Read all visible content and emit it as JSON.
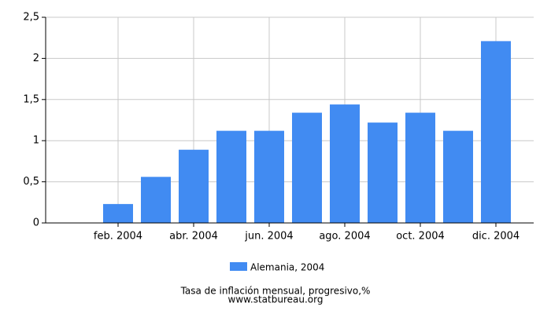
{
  "chart_data": {
    "type": "bar",
    "categories": [
      null,
      "feb. 2004",
      null,
      "abr. 2004",
      null,
      "jun. 2004",
      null,
      "ago. 2004",
      null,
      "oct. 2004",
      null,
      "dic. 2004"
    ],
    "series": [
      {
        "name": "Alemania, 2004",
        "color": "#418bf2",
        "values": [
          0,
          0.23,
          0.56,
          0.89,
          1.12,
          1.12,
          1.34,
          1.44,
          1.22,
          1.34,
          1.12,
          2.21
        ]
      }
    ],
    "ylim": [
      0,
      2.5
    ],
    "yticks": [
      0,
      {
        "value": 0.5,
        "label": "0,5"
      },
      1,
      {
        "value": 1.5,
        "label": "1,5"
      },
      2,
      {
        "value": 2.5,
        "label": "2,5"
      }
    ],
    "grid": true,
    "legend": "bottom",
    "footer": [
      "Tasa de inflación mensual, progresivo,%",
      "www.statbureau.org"
    ]
  }
}
